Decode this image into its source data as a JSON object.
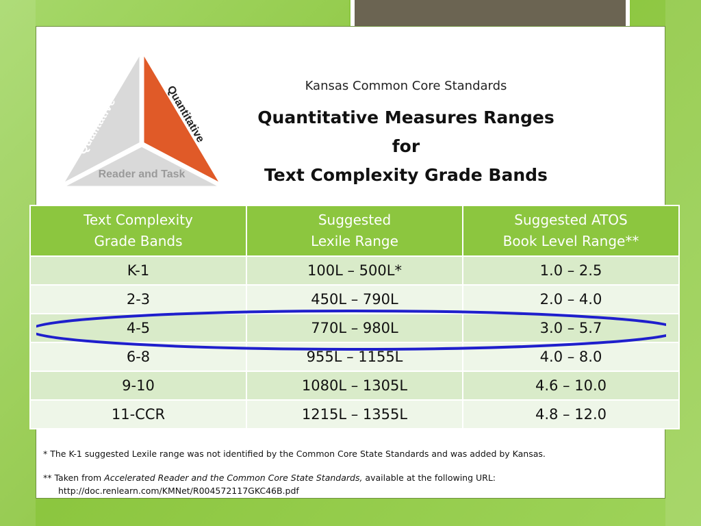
{
  "triangle": {
    "qualitative": "Qualitative",
    "quantitative": "Quantitative",
    "reader_task": "Reader and Task"
  },
  "header": {
    "subtitle": "Kansas Common Core Standards",
    "title_line1": "Quantitative Measures Ranges for",
    "title_line2": "Text Complexity Grade Bands"
  },
  "table": {
    "headers": [
      [
        "Text Complexity",
        "Grade Bands"
      ],
      [
        "Suggested",
        "Lexile Range"
      ],
      [
        "Suggested ATOS",
        "Book Level Range**"
      ]
    ],
    "rows": [
      [
        "K-1",
        "100L – 500L*",
        "1.0 – 2.5"
      ],
      [
        "2-3",
        "450L – 790L",
        "2.0 – 4.0"
      ],
      [
        "4-5",
        "770L – 980L",
        "3.0 – 5.7"
      ],
      [
        "6-8",
        "955L – 1155L",
        "4.0 – 8.0"
      ],
      [
        "9-10",
        "1080L – 1305L",
        "4.6 – 10.0"
      ],
      [
        "11-CCR",
        "1215L – 1355L",
        "4.8 – 12.0"
      ]
    ]
  },
  "footnotes": {
    "note1": "* The K-1 suggested Lexile range was not identified by the Common Core State Standards and was added by Kansas.",
    "note2_prefix": "** Taken from ",
    "note2_title": "Accelerated Reader and the Common Core State Standards,",
    "note2_suffix": " available at the following URL:",
    "note2_url": "http://doc.renlearn.com/KMNet/R004572117GKC46B.pdf"
  },
  "colors": {
    "header_green": "#8cc63f",
    "quantitative_orange": "#e05a28",
    "highlight_blue": "#1f1fcc"
  }
}
